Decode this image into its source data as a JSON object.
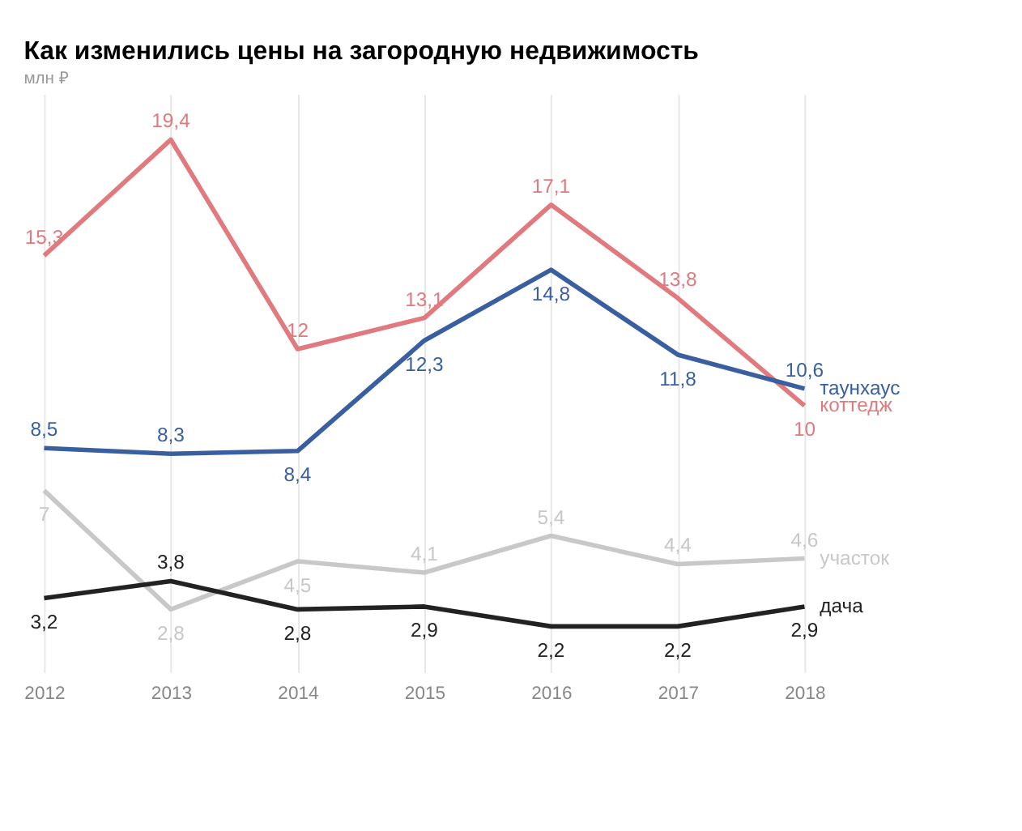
{
  "chart_data": {
    "type": "line",
    "title": "Как изменились цены на загородную недвижимость",
    "subtitle": "млн ₽",
    "categories": [
      "2012",
      "2013",
      "2014",
      "2015",
      "2016",
      "2017",
      "2018"
    ],
    "series": [
      {
        "name": "коттедж",
        "color": "#e07a7e",
        "values": [
          15.3,
          19.4,
          12,
          13.1,
          17.1,
          13.8,
          10
        ],
        "value_labels": [
          "15,3",
          "19,4",
          "12",
          "13,1",
          "17,1",
          "13,8",
          "10"
        ]
      },
      {
        "name": "таунхаус",
        "color": "#3a5fa0",
        "values": [
          8.5,
          8.3,
          8.4,
          12.3,
          14.8,
          11.8,
          10.6
        ],
        "value_labels": [
          "8,5",
          "8,3",
          "8,4",
          "12,3",
          "14,8",
          "11,8",
          "10,6"
        ]
      },
      {
        "name": "участок",
        "color": "#c8c8c8",
        "values": [
          7,
          2.8,
          4.5,
          4.1,
          5.4,
          4.4,
          4.6
        ],
        "value_labels": [
          "7",
          "2,8",
          "4,5",
          "4,1",
          "5,4",
          "4,4",
          "4,6"
        ]
      },
      {
        "name": "дача",
        "color": "#222222",
        "values": [
          3.2,
          3.8,
          2.8,
          2.9,
          2.2,
          2.2,
          2.9
        ],
        "value_labels": [
          "3,2",
          "3,8",
          "2,8",
          "2,9",
          "2,2",
          "2,2",
          "2,9"
        ]
      }
    ],
    "grid": "x",
    "tick_labels": "x",
    "marker": "none",
    "line_style": "solid"
  }
}
